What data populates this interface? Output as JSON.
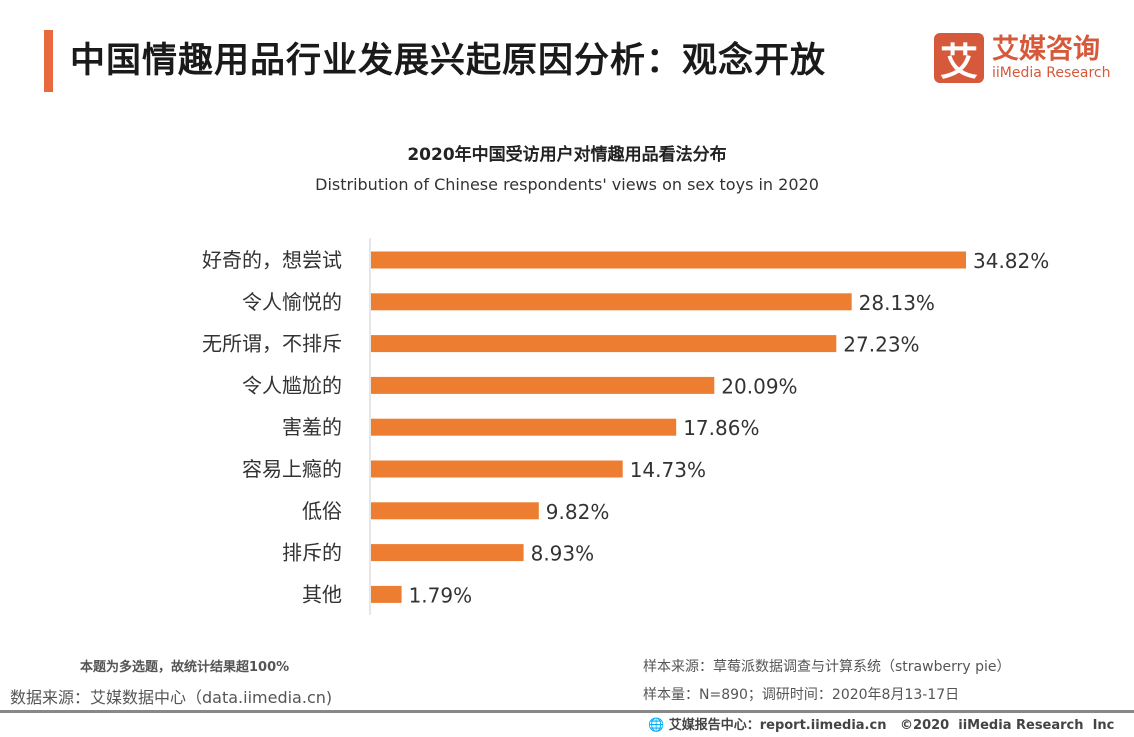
{
  "header": {
    "title": "中国情趣用品行业发展兴起原因分析：观念开放"
  },
  "logo": {
    "mark": "艾",
    "cn": "艾媒咨询",
    "en": "iiMedia Research"
  },
  "colors": {
    "accent": "#e8693c",
    "bar": "#ed7d31",
    "logo": "#d5593a"
  },
  "chart_data": {
    "type": "bar",
    "orientation": "horizontal",
    "title": "2020年中国受访用户对情趣用品看法分布",
    "subtitle": "Distribution of Chinese respondents' views on sex toys in 2020",
    "categories": [
      "好奇的，想尝试",
      "令人愉悦的",
      "无所谓，不排斥",
      "令人尴尬的",
      "害羞的",
      "容易上瘾的",
      "低俗",
      "排斥的",
      "其他"
    ],
    "values": [
      34.82,
      28.13,
      27.23,
      20.09,
      17.86,
      14.73,
      9.82,
      8.93,
      1.79
    ],
    "labels": [
      "34.82%",
      "28.13%",
      "27.23%",
      "20.09%",
      "17.86%",
      "14.73%",
      "9.82%",
      "8.93%",
      "1.79%"
    ],
    "unit": "%",
    "xlim": [
      0,
      35
    ],
    "grid": false
  },
  "footer": {
    "note": "本题为多选题，故统计结果超100%",
    "source": "数据来源：艾媒数据中心（data.iimedia.cn)",
    "sample_source": "样本来源：草莓派数据调查与计算系统（strawberry pie）",
    "sample": "样本量：N=890；调研时间：2020年8月13-17日",
    "copyright": "艾媒报告中心：report.iimedia.cn   ©2020  iiMedia Research  Inc"
  }
}
